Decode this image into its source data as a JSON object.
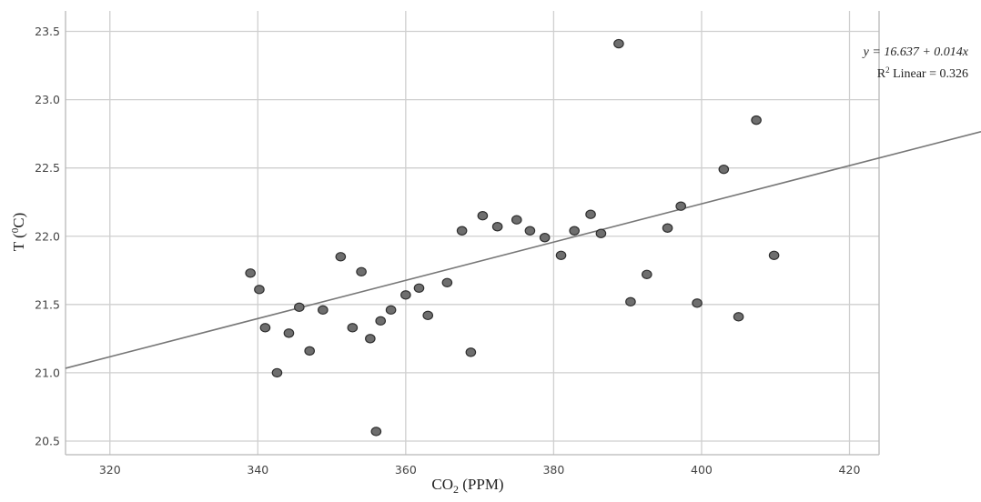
{
  "chart_data": {
    "type": "scatter",
    "xlabel": {
      "base": "CO",
      "sub": "2",
      "rest": " (PPM)"
    },
    "ylabel": {
      "base": "T (",
      "sup": "0",
      "rest": "C)"
    },
    "xlim": [
      314,
      424
    ],
    "ylim": [
      20.4,
      23.65
    ],
    "xticks": [
      320,
      340,
      360,
      380,
      400,
      420
    ],
    "yticks": [
      20.5,
      21.0,
      21.5,
      22.0,
      22.5,
      23.0,
      23.5
    ],
    "xtick_labels": [
      "320",
      "340",
      "360",
      "380",
      "400",
      "420"
    ],
    "ytick_labels": [
      "20.5",
      "21.0",
      "21.5",
      "22.0",
      "22.5",
      "23.0",
      "23.5"
    ],
    "grid": true,
    "fit_line": {
      "intercept": 16.637,
      "slope": 0.014,
      "equation": "y = 16.637 + 0.014x",
      "r2_prefix": "R",
      "r2_sup": "2",
      "r2_rest": " Linear = 0.326"
    },
    "points": [
      {
        "x": 339.0,
        "y": 21.73
      },
      {
        "x": 340.2,
        "y": 21.61
      },
      {
        "x": 341.0,
        "y": 21.33
      },
      {
        "x": 342.6,
        "y": 21.0
      },
      {
        "x": 344.2,
        "y": 21.29
      },
      {
        "x": 345.6,
        "y": 21.48
      },
      {
        "x": 347.0,
        "y": 21.16
      },
      {
        "x": 348.8,
        "y": 21.46
      },
      {
        "x": 351.2,
        "y": 21.85
      },
      {
        "x": 352.8,
        "y": 21.33
      },
      {
        "x": 354.0,
        "y": 21.74
      },
      {
        "x": 355.2,
        "y": 21.25
      },
      {
        "x": 356.0,
        "y": 20.57
      },
      {
        "x": 356.6,
        "y": 21.38
      },
      {
        "x": 358.0,
        "y": 21.46
      },
      {
        "x": 360.0,
        "y": 21.57
      },
      {
        "x": 361.8,
        "y": 21.62
      },
      {
        "x": 363.0,
        "y": 21.42
      },
      {
        "x": 365.6,
        "y": 21.66
      },
      {
        "x": 367.6,
        "y": 22.04
      },
      {
        "x": 368.8,
        "y": 21.15
      },
      {
        "x": 370.4,
        "y": 22.15
      },
      {
        "x": 372.4,
        "y": 22.07
      },
      {
        "x": 375.0,
        "y": 22.12
      },
      {
        "x": 376.8,
        "y": 22.04
      },
      {
        "x": 378.8,
        "y": 21.99
      },
      {
        "x": 381.0,
        "y": 21.86
      },
      {
        "x": 382.8,
        "y": 22.04
      },
      {
        "x": 385.0,
        "y": 22.16
      },
      {
        "x": 386.4,
        "y": 22.02
      },
      {
        "x": 388.8,
        "y": 23.41
      },
      {
        "x": 390.4,
        "y": 21.52
      },
      {
        "x": 392.6,
        "y": 21.72
      },
      {
        "x": 395.4,
        "y": 22.06
      },
      {
        "x": 397.2,
        "y": 22.22
      },
      {
        "x": 399.4,
        "y": 21.51
      },
      {
        "x": 403.0,
        "y": 22.49
      },
      {
        "x": 405.0,
        "y": 21.41
      },
      {
        "x": 407.4,
        "y": 22.85
      },
      {
        "x": 409.8,
        "y": 21.86
      }
    ],
    "colors": {
      "grid": "#cfcfcf",
      "axis": "#b8b8b8",
      "fit": "#777777",
      "marker_fill": "#6e6e6e",
      "marker_stroke": "#2e2e2e"
    }
  }
}
